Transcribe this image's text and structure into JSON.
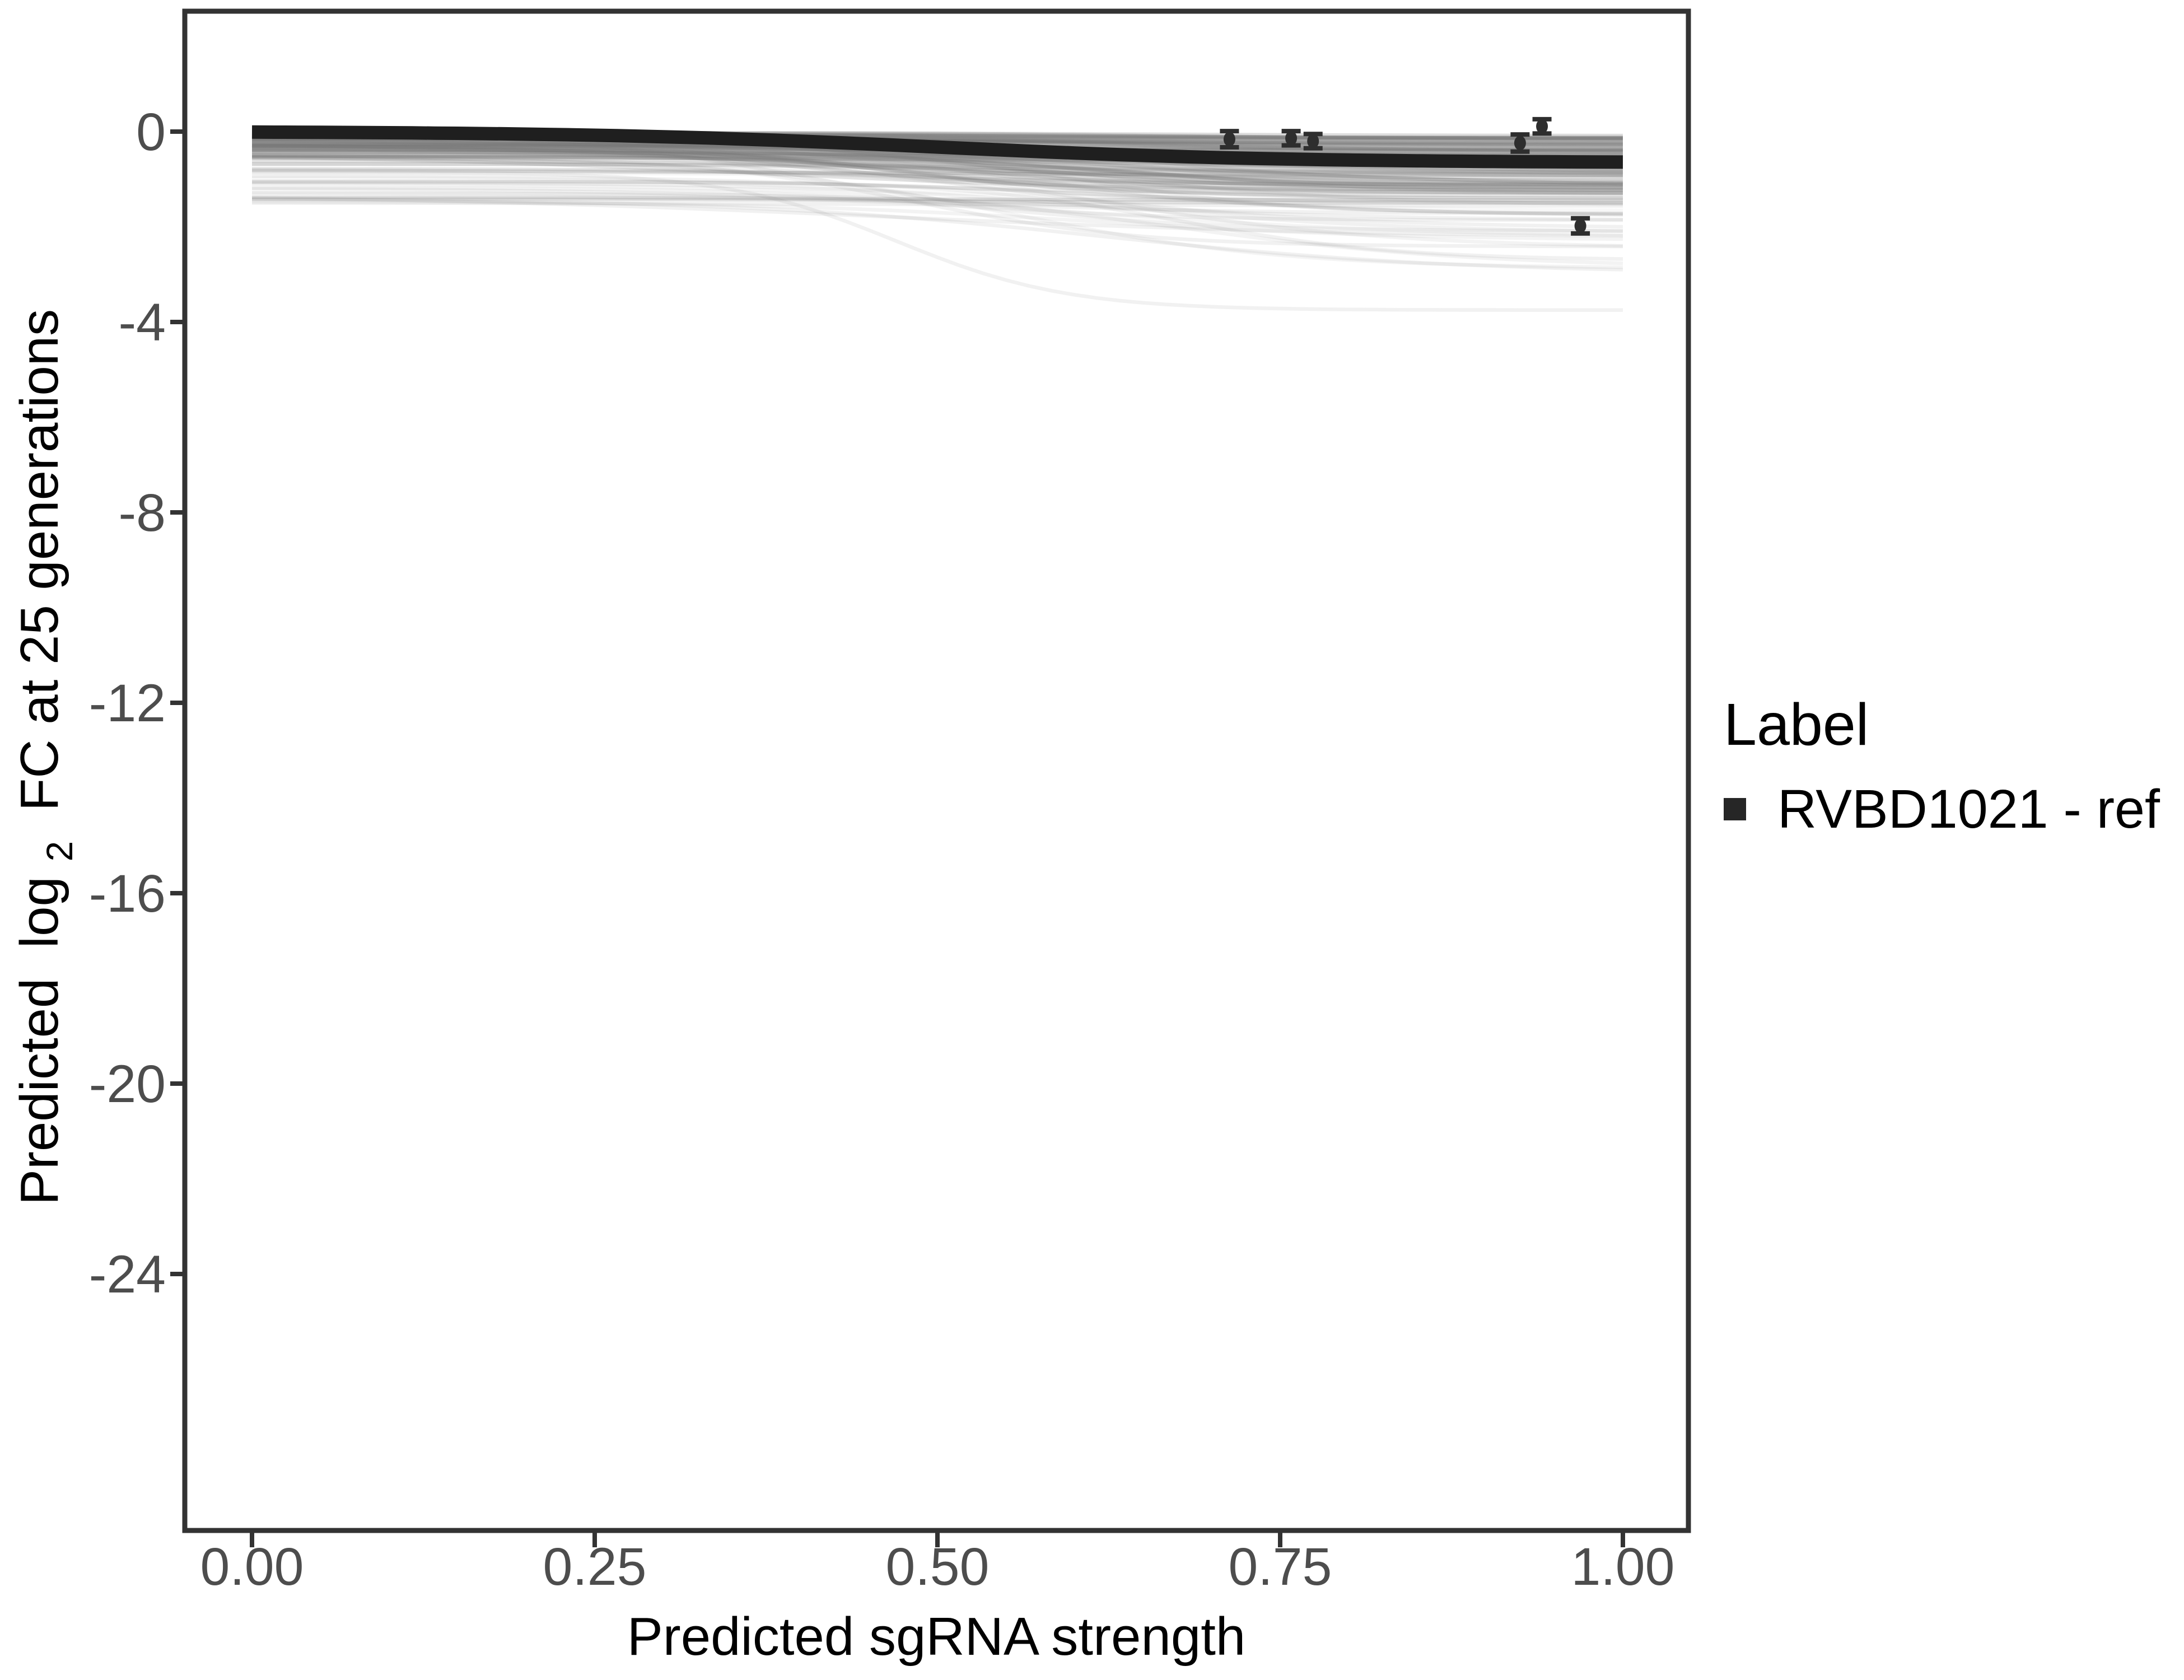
{
  "legend": {
    "title": "Label",
    "items": [
      {
        "label": "RVBD1021 - ref",
        "color": "#262626"
      }
    ]
  },
  "chart_data": {
    "type": "line",
    "title": "",
    "xlabel": "Predicted sgRNA strength",
    "ylabel": "Predicted log2 FC at 25 generations",
    "ylabel_parts": {
      "prefix": "Predicted  log",
      "sub": "2",
      "suffix": " FC at 25 generations"
    },
    "x_ticks": {
      "values": [
        0,
        0.25,
        0.5,
        0.75,
        1.0
      ],
      "labels": [
        "0.00",
        "0.25",
        "0.50",
        "0.75",
        "1.00"
      ]
    },
    "y_ticks": {
      "values": [
        0,
        -4,
        -8,
        -12,
        -16,
        -20,
        -24
      ],
      "labels": [
        "0",
        "-4",
        "-8",
        "-12",
        "-16",
        "-20",
        "-24"
      ]
    },
    "x_range": [
      -0.049,
      1.048
    ],
    "y_range": [
      -29.4,
      2.53
    ],
    "grid": false,
    "legend_position": "right",
    "panel_border_color": "#333333",
    "tick_color": "#333333",
    "tick_label_color": "#4d4d4d",
    "reference_curve": {
      "name": "RVBD1021 - ref",
      "color": "#1f1f1f",
      "stroke_width": 24,
      "start": -0.01,
      "end": -0.64,
      "midpoint": 0.5,
      "steepness": 8,
      "points_x": [
        0,
        0.1,
        0.2,
        0.3,
        0.4,
        0.5,
        0.6,
        0.7,
        0.8,
        0.9,
        1.0
      ],
      "points_y": [
        -0.01,
        -0.02,
        -0.05,
        -0.11,
        -0.2,
        -0.33,
        -0.45,
        -0.54,
        -0.6,
        -0.63,
        -0.64
      ]
    },
    "ensemble": {
      "description": "~140 translucent gray predicted dose-response sigmoids, one per sgRNA model draw",
      "count": 135,
      "seed": 7,
      "color": "#777777",
      "stroke_width": 6.5,
      "start_range": [
        -0.02,
        -1.5
      ],
      "end_range": [
        -0.1,
        -2.9
      ],
      "midpoint_range": [
        0.38,
        0.72
      ],
      "steepness_range": [
        5,
        13
      ],
      "opacity_range": [
        0.04,
        0.26
      ],
      "specials": [
        {
          "start": -1.5,
          "end": -1.56,
          "midpoint": 0.5,
          "steepness": 6,
          "opacity": 0.1
        },
        {
          "start": -0.85,
          "end": -3.75,
          "midpoint": 0.47,
          "steepness": 16,
          "opacity": 0.1
        },
        {
          "start": -0.55,
          "end": -2.85,
          "midpoint": 0.55,
          "steepness": 10,
          "opacity": 0.08
        },
        {
          "start": -0.3,
          "end": -2.4,
          "midpoint": 0.6,
          "steepness": 9,
          "opacity": 0.09
        },
        {
          "start": -0.22,
          "end": -2.0,
          "midpoint": 0.52,
          "steepness": 8,
          "opacity": 0.1
        },
        {
          "start": -0.1,
          "end": -1.75,
          "midpoint": 0.5,
          "steepness": 7,
          "opacity": 0.12
        }
      ]
    },
    "error_points": {
      "color": "#2e2e2e",
      "points": [
        {
          "x": 0.713,
          "y": -0.16,
          "se": 0.17
        },
        {
          "x": 0.758,
          "y": -0.14,
          "se": 0.15
        },
        {
          "x": 0.774,
          "y": -0.2,
          "se": 0.15
        },
        {
          "x": 0.925,
          "y": -0.24,
          "se": 0.18
        },
        {
          "x": 0.941,
          "y": 0.11,
          "se": 0.15
        },
        {
          "x": 0.969,
          "y": -1.98,
          "se": 0.16
        }
      ]
    }
  }
}
